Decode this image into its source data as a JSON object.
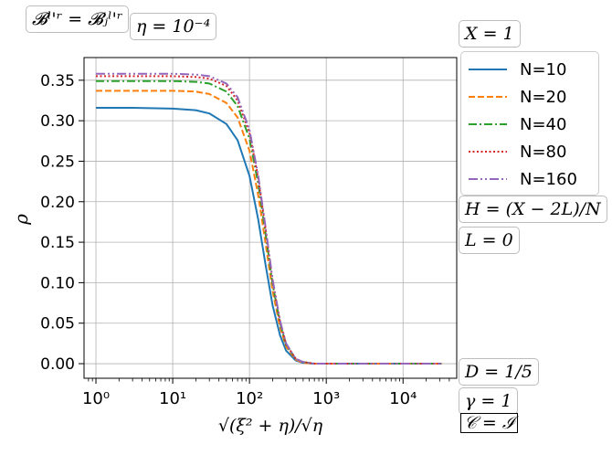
{
  "annotations": {
    "top_left_eq": "𝓑ˡ'ʳ = 𝓑ⱼˡ'ʳ",
    "eta": "η = 10⁻⁴",
    "X": "X = 1",
    "H": "H = (X − 2L)/N",
    "L": "L = 0",
    "D": "D = 1/5",
    "gamma": "γ = 1",
    "C": "𝒞 = ℐ"
  },
  "chart_data": {
    "type": "line",
    "xscale": "log",
    "xlabel": "√(ξ² + η)/√η",
    "ylabel": "ρ",
    "xlim": [
      0.7,
      50000
    ],
    "ylim": [
      -0.018,
      0.378
    ],
    "xticks": [
      1,
      10,
      100,
      1000,
      10000
    ],
    "xtick_labels": [
      "10⁰",
      "10¹",
      "10²",
      "10³",
      "10⁴"
    ],
    "yticks": [
      0.0,
      0.05,
      0.1,
      0.15,
      0.2,
      0.25,
      0.3,
      0.35
    ],
    "ytick_labels": [
      "0.00",
      "0.05",
      "0.10",
      "0.15",
      "0.20",
      "0.25",
      "0.30",
      "0.35"
    ],
    "grid": true,
    "legend_position": "outside-right-top",
    "x": [
      1,
      3,
      10,
      20,
      30,
      50,
      70,
      100,
      130,
      160,
      200,
      250,
      300,
      400,
      500,
      700,
      1000,
      3000,
      10000,
      31623
    ],
    "series": [
      {
        "name": "N=10",
        "color": "#1f77b4",
        "dash": "",
        "values": [
          0.316,
          0.316,
          0.315,
          0.313,
          0.309,
          0.296,
          0.276,
          0.232,
          0.178,
          0.125,
          0.072,
          0.035,
          0.016,
          0.004,
          0.001,
          0.0,
          0.0,
          0.0,
          0.0,
          0.0
        ]
      },
      {
        "name": "N=20",
        "color": "#ff7f0e",
        "dash": "7,3",
        "values": [
          0.337,
          0.337,
          0.337,
          0.336,
          0.333,
          0.322,
          0.304,
          0.263,
          0.208,
          0.152,
          0.09,
          0.045,
          0.021,
          0.005,
          0.001,
          0.0,
          0.0,
          0.0,
          0.0,
          0.0
        ]
      },
      {
        "name": "N=40",
        "color": "#2ca02c",
        "dash": "9,3,2,3",
        "values": [
          0.349,
          0.349,
          0.349,
          0.348,
          0.346,
          0.336,
          0.318,
          0.278,
          0.222,
          0.164,
          0.098,
          0.05,
          0.023,
          0.006,
          0.002,
          0.0,
          0.0,
          0.0,
          0.0,
          0.0
        ]
      },
      {
        "name": "N=80",
        "color": "#d62728",
        "dash": "2,2.5",
        "values": [
          0.355,
          0.355,
          0.355,
          0.354,
          0.352,
          0.343,
          0.325,
          0.285,
          0.229,
          0.17,
          0.102,
          0.052,
          0.024,
          0.006,
          0.002,
          0.0,
          0.0,
          0.0,
          0.0,
          0.0
        ]
      },
      {
        "name": "N=160",
        "color": "#9467bd",
        "dash": "10,3,2,3,2,3",
        "values": [
          0.358,
          0.358,
          0.358,
          0.357,
          0.355,
          0.346,
          0.329,
          0.289,
          0.232,
          0.172,
          0.104,
          0.053,
          0.025,
          0.006,
          0.002,
          0.0,
          0.0,
          0.0,
          0.0,
          0.0
        ]
      }
    ]
  }
}
